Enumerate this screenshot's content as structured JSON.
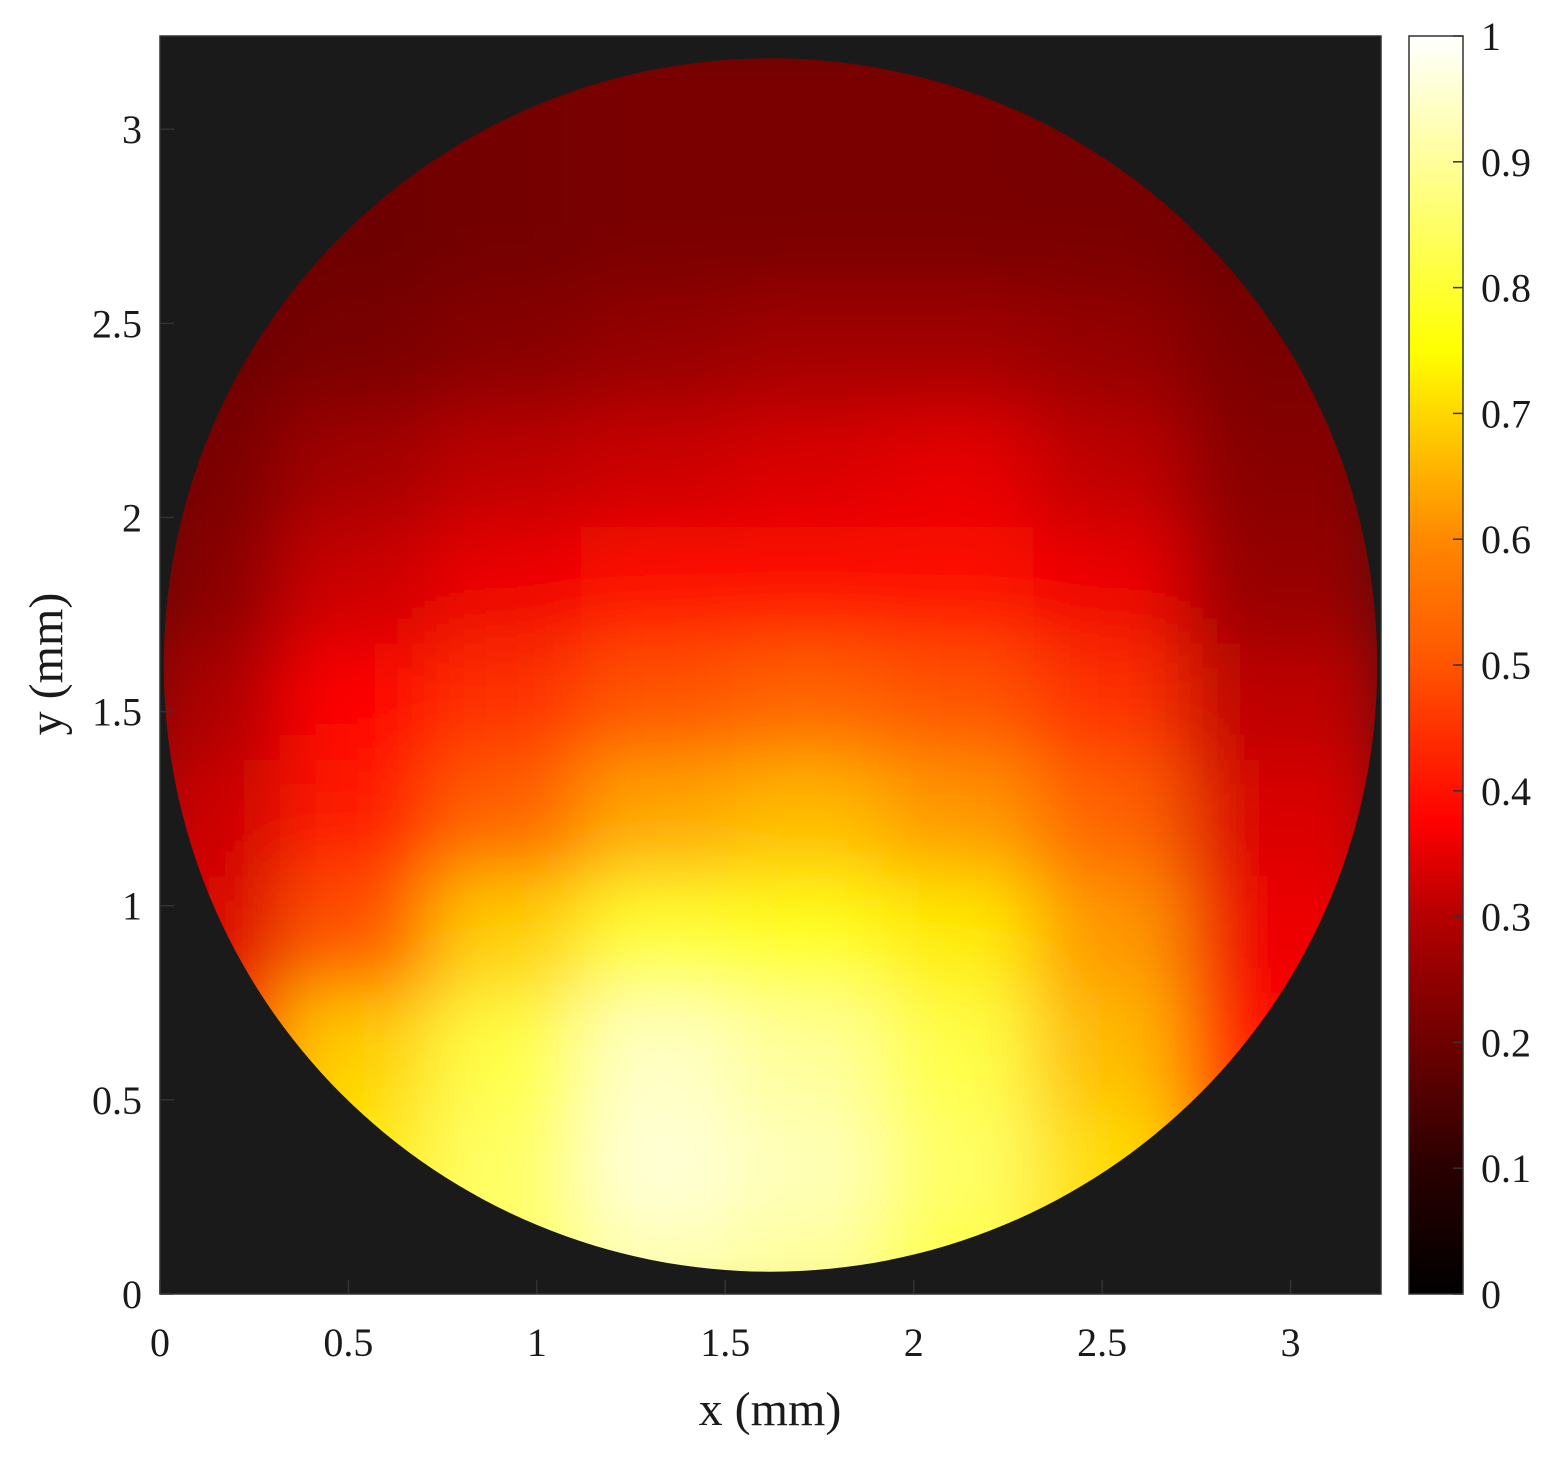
{
  "chart_data": {
    "type": "heatmap",
    "shape": "circular aperture",
    "colormap": "hot",
    "background_color": "#1a1a1a",
    "xlabel": "x (mm)",
    "ylabel": "y (mm)",
    "xlim": [
      0,
      3.24
    ],
    "ylim": [
      0,
      3.24
    ],
    "x_ticks": [
      "0",
      "0.5",
      "1",
      "1.5",
      "2",
      "2.5",
      "3"
    ],
    "y_ticks": [
      "0",
      "0.5",
      "1",
      "1.5",
      "2",
      "2.5",
      "3"
    ],
    "colorbar": {
      "range": [
        0,
        1
      ],
      "ticks": [
        "0",
        "0.1",
        "0.2",
        "0.3",
        "0.4",
        "0.5",
        "0.6",
        "0.7",
        "0.8",
        "0.9",
        "1"
      ]
    },
    "circle": {
      "center_x": 1.62,
      "center_y": 1.62,
      "radius": 1.61
    },
    "grid": false,
    "x": [
      0.2,
      0.6,
      1.0,
      1.4,
      1.8,
      2.2,
      2.6,
      3.0
    ],
    "y": [
      0.1,
      0.4,
      0.7,
      1.0,
      1.3,
      1.6,
      1.9,
      2.2,
      2.5,
      2.8,
      3.1
    ],
    "values": [
      [
        0.55,
        0.78,
        0.85,
        0.92,
        0.9,
        0.82,
        0.7,
        0.55
      ],
      [
        0.5,
        0.72,
        0.85,
        0.96,
        0.93,
        0.85,
        0.7,
        0.5
      ],
      [
        0.4,
        0.68,
        0.82,
        0.94,
        0.9,
        0.82,
        0.65,
        0.4
      ],
      [
        0.32,
        0.5,
        0.68,
        0.8,
        0.78,
        0.72,
        0.6,
        0.35
      ],
      [
        0.3,
        0.42,
        0.52,
        0.62,
        0.65,
        0.6,
        0.52,
        0.32
      ],
      [
        0.25,
        0.38,
        0.45,
        0.5,
        0.52,
        0.5,
        0.45,
        0.28
      ],
      [
        0.2,
        0.3,
        0.35,
        0.4,
        0.4,
        0.4,
        0.35,
        0.22
      ],
      [
        0.18,
        0.24,
        0.28,
        0.3,
        0.32,
        0.34,
        0.28,
        0.2
      ],
      [
        0.16,
        0.18,
        0.2,
        0.22,
        0.24,
        0.24,
        0.22,
        0.18
      ],
      [
        0.15,
        0.16,
        0.17,
        0.18,
        0.18,
        0.18,
        0.18,
        0.16
      ],
      [
        0.15,
        0.16,
        0.17,
        0.18,
        0.18,
        0.18,
        0.17,
        0.16
      ]
    ]
  }
}
